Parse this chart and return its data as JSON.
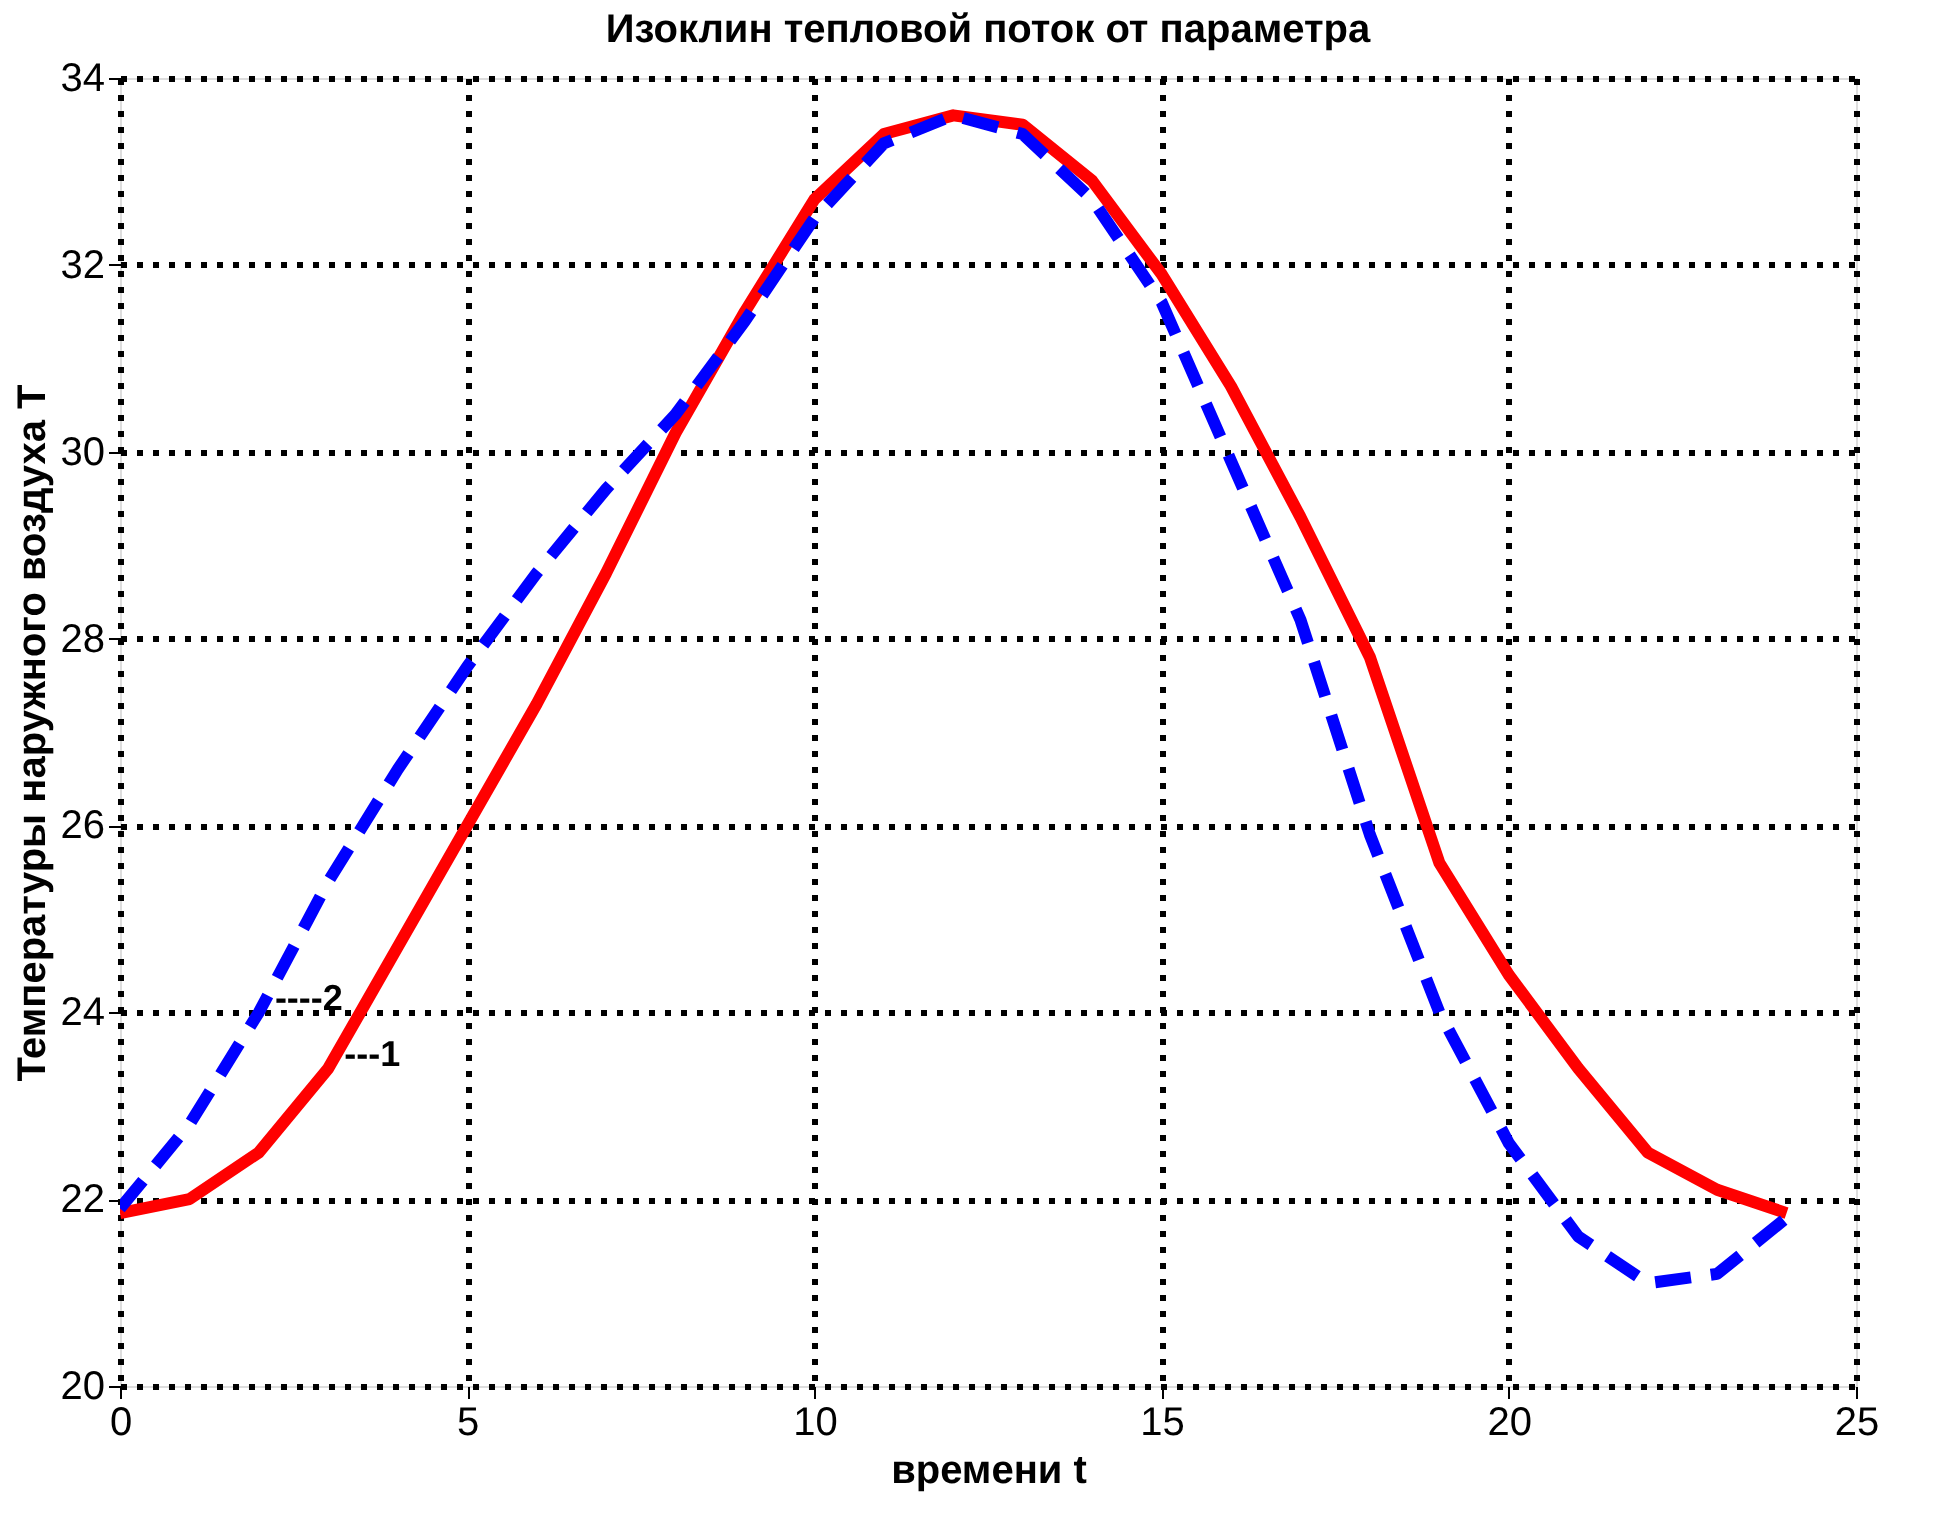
{
  "chart_data": {
    "type": "line",
    "title": "Изоклин тепловой поток от параметра",
    "xlabel": "времени t",
    "ylabel": "Температуры наружного воздуха T",
    "x": [
      0,
      1,
      2,
      3,
      4,
      5,
      6,
      7,
      8,
      9,
      10,
      11,
      12,
      13,
      14,
      15,
      16,
      17,
      18,
      19,
      20,
      21,
      22,
      23,
      24
    ],
    "series": [
      {
        "name": "---1",
        "color": "#ff0000",
        "line_style": "solid",
        "values": [
          21.85,
          22.0,
          22.5,
          23.4,
          24.7,
          26.0,
          27.3,
          28.7,
          30.2,
          31.5,
          32.7,
          33.4,
          33.6,
          33.5,
          32.9,
          31.9,
          30.7,
          29.3,
          27.8,
          25.6,
          24.4,
          23.4,
          22.5,
          22.1,
          21.85
        ]
      },
      {
        "name": "----2",
        "color": "#0000ff",
        "line_style": "dashed",
        "values": [
          21.9,
          22.8,
          24.0,
          25.4,
          26.6,
          27.7,
          28.7,
          29.6,
          30.4,
          31.4,
          32.5,
          33.3,
          33.6,
          33.4,
          32.7,
          31.6,
          29.9,
          28.2,
          25.9,
          24.0,
          22.6,
          21.6,
          21.1,
          21.2,
          21.8
        ]
      }
    ],
    "xlim": [
      0,
      25
    ],
    "xticks": [
      0,
      5,
      10,
      15,
      20,
      25
    ],
    "ylim": [
      20,
      34
    ],
    "yticks": [
      20,
      22,
      24,
      26,
      28,
      30,
      32,
      34
    ],
    "grid": true,
    "marker": "none"
  }
}
